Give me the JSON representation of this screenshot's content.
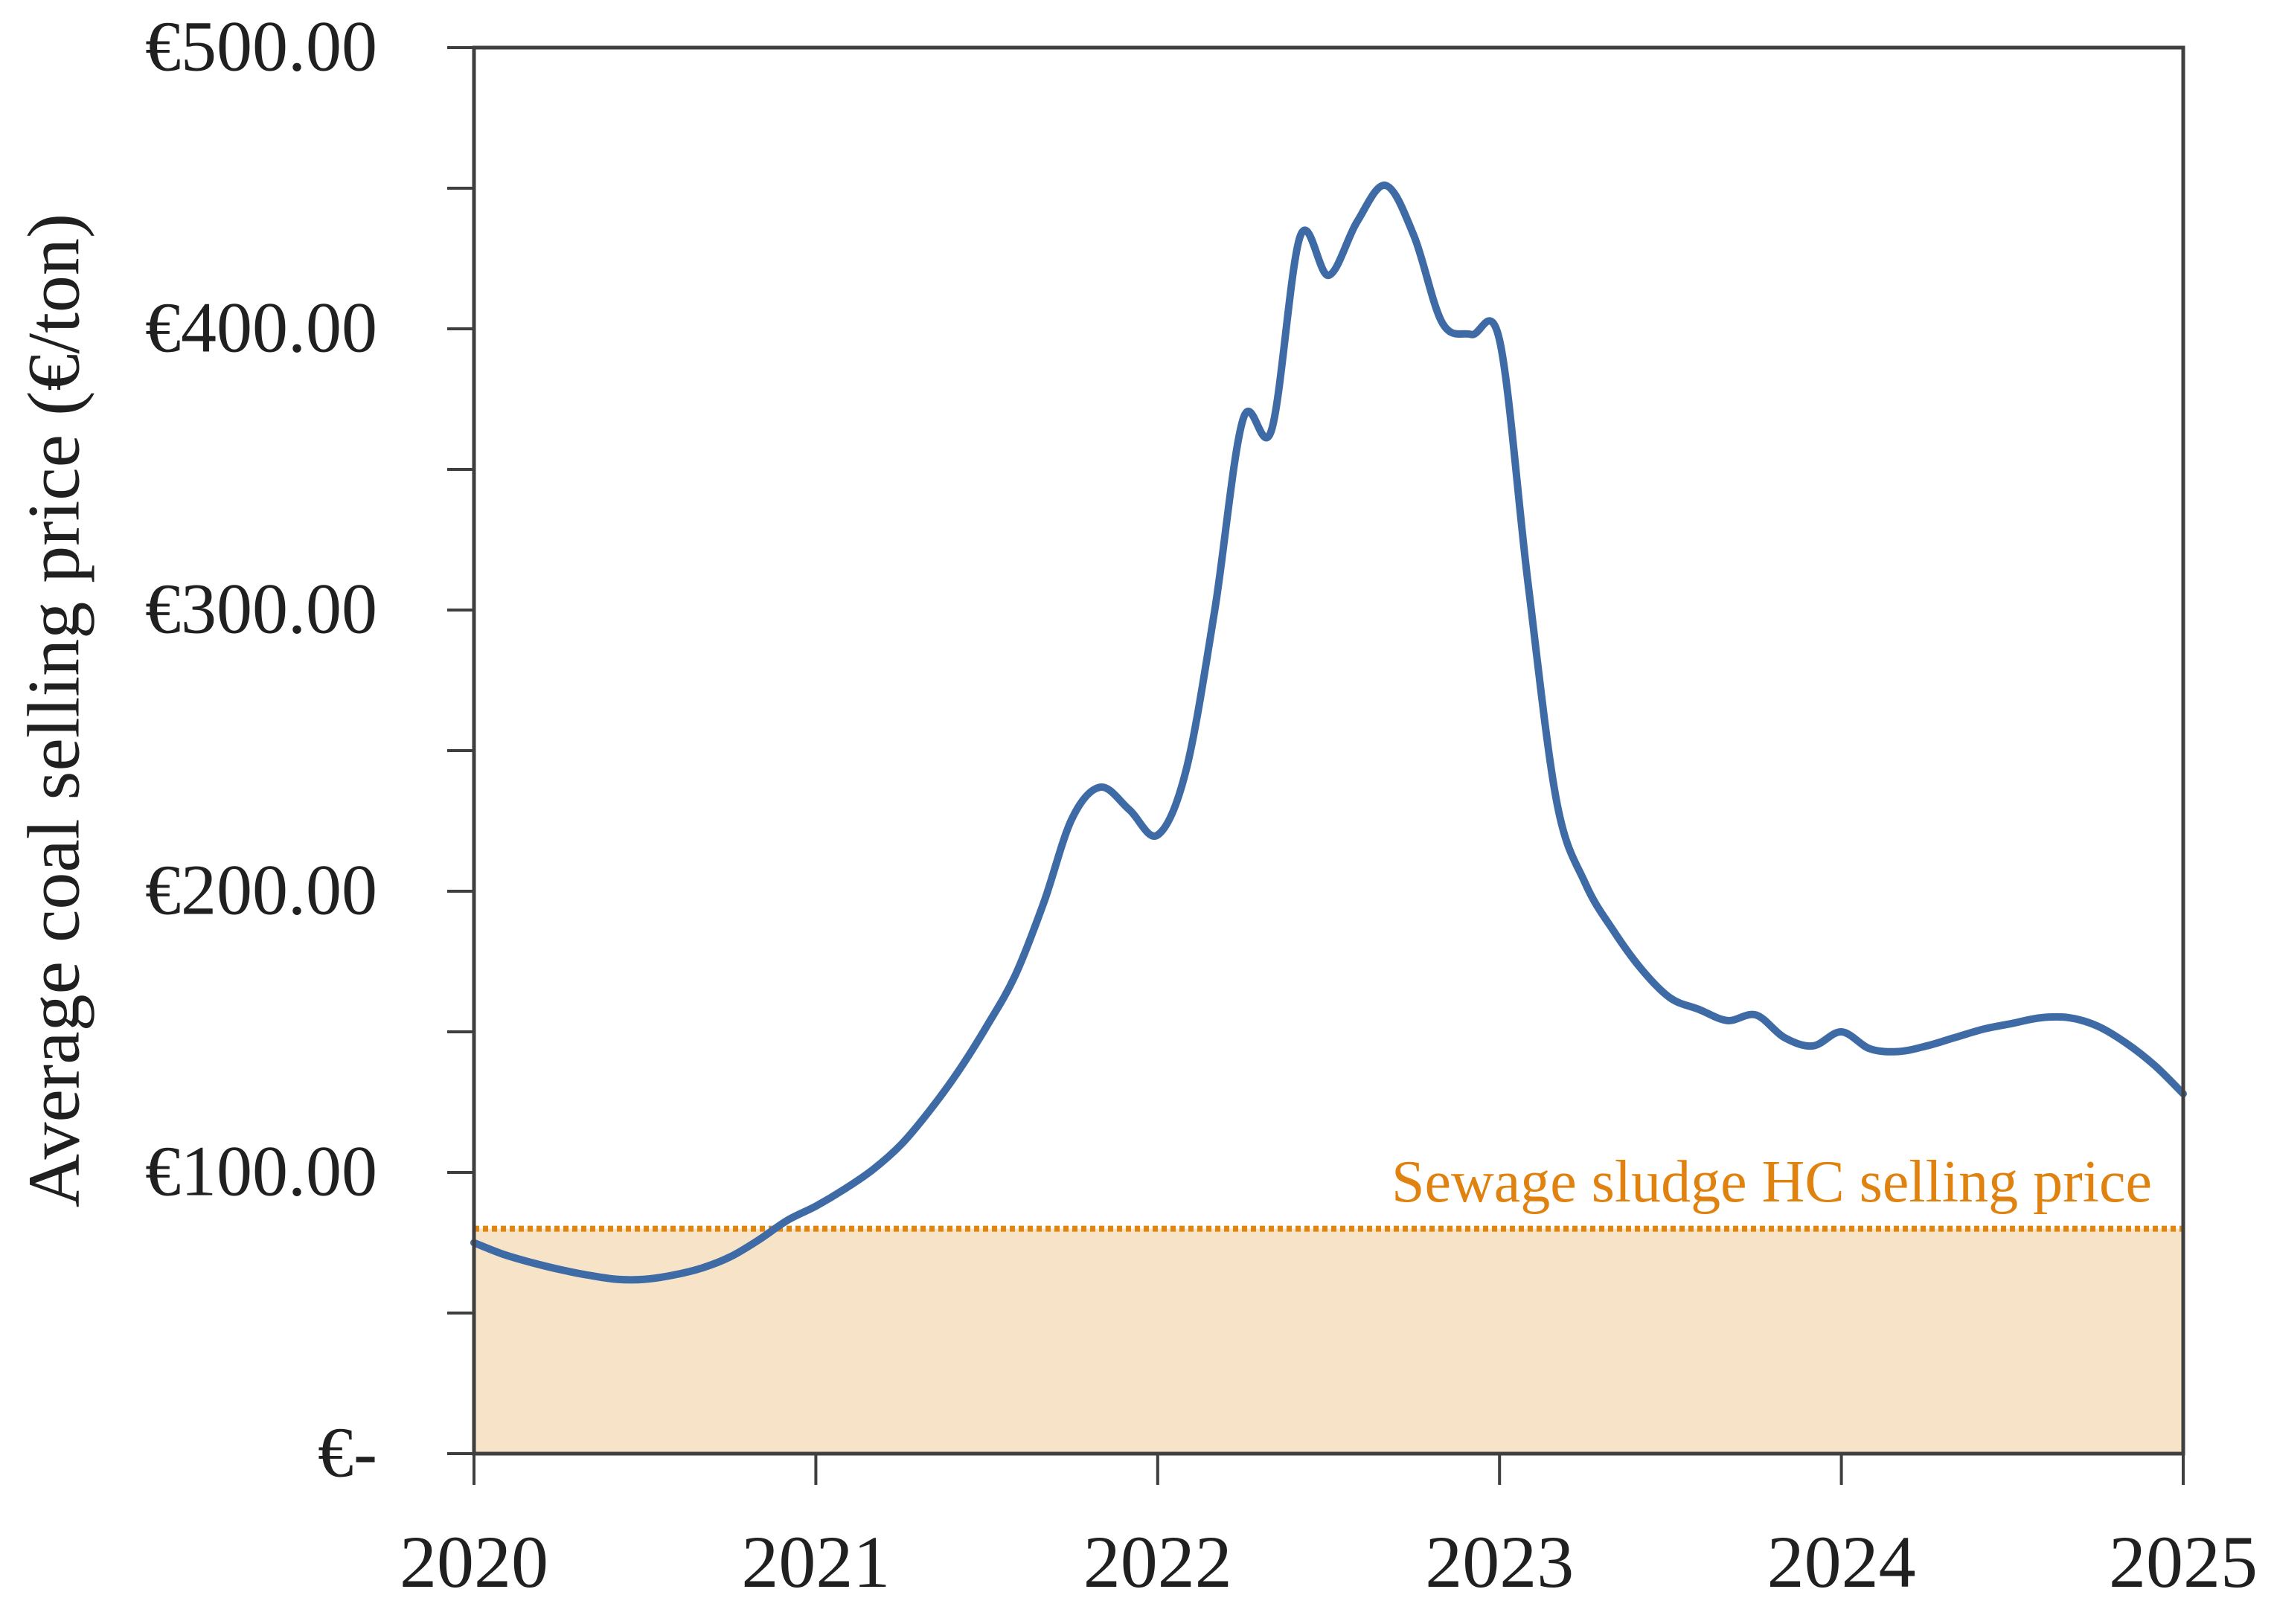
{
  "chart_data": {
    "type": "line",
    "title": "",
    "xlabel": "",
    "ylabel": "Average coal selling price (€/ton)",
    "x_tick_labels": [
      "2020",
      "2021",
      "2022",
      "2023",
      "2024",
      "2025"
    ],
    "x_tick_values": [
      2020,
      2021,
      2022,
      2023,
      2024,
      2025
    ],
    "y_tick_labels": [
      "€-",
      "€100.00",
      "€200.00",
      "€300.00",
      "€400.00",
      "€500.00"
    ],
    "y_tick_values": [
      0,
      100,
      200,
      300,
      400,
      500
    ],
    "y_minor_tick_step": 50,
    "xlim": [
      2020,
      2025
    ],
    "ylim": [
      0,
      500
    ],
    "grid": false,
    "legend_position": "none",
    "annotation": {
      "text": "Sewage sludge HC selling price",
      "color": "#E0820F"
    },
    "hc_selling_price": 80,
    "series": [
      {
        "name": "Average coal selling price",
        "color": "#3E6BA5",
        "x": [
          2020.0,
          2020.083,
          2020.167,
          2020.25,
          2020.333,
          2020.417,
          2020.5,
          2020.583,
          2020.667,
          2020.75,
          2020.833,
          2020.917,
          2021.0,
          2021.083,
          2021.167,
          2021.25,
          2021.333,
          2021.417,
          2021.5,
          2021.583,
          2021.667,
          2021.75,
          2021.833,
          2021.917,
          2022.0,
          2022.083,
          2022.167,
          2022.25,
          2022.333,
          2022.417,
          2022.5,
          2022.583,
          2022.667,
          2022.75,
          2022.833,
          2022.917,
          2023.0,
          2023.083,
          2023.167,
          2023.25,
          2023.333,
          2023.417,
          2023.5,
          2023.583,
          2023.667,
          2023.75,
          2023.833,
          2023.917,
          2024.0,
          2024.083,
          2024.167,
          2024.25,
          2024.333,
          2024.417,
          2024.5,
          2024.583,
          2024.667,
          2024.75,
          2024.833,
          2024.917,
          2025.0
        ],
        "y": [
          75,
          71,
          68,
          65.5,
          63.5,
          62,
          62,
          63.5,
          66,
          70,
          76,
          83,
          88,
          94,
          101,
          110,
          122,
          136,
          152,
          170,
          196,
          226,
          237,
          229,
          220,
          243,
          300,
          368,
          364,
          433,
          419,
          438,
          451,
          433,
          402,
          398,
          396,
          310,
          232,
          203,
          186,
          172,
          162,
          158,
          154,
          156,
          148,
          145,
          150,
          144,
          143,
          145,
          148,
          151,
          153,
          155,
          155,
          152,
          146,
          138,
          128
        ]
      }
    ],
    "colors": {
      "band": "#F6E3C8",
      "threshold_dots": "#E28410",
      "axis": "#3F3F3F",
      "tick_text": "#202020",
      "background": "#FFFFFF"
    }
  }
}
